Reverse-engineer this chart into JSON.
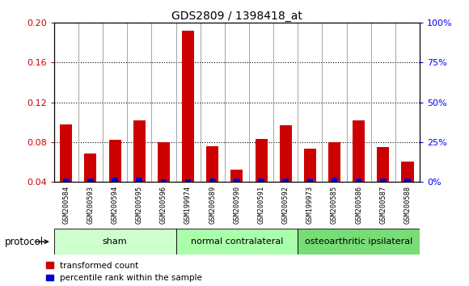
{
  "title": "GDS2809 / 1398418_at",
  "samples": [
    "GSM200584",
    "GSM200593",
    "GSM200594",
    "GSM200595",
    "GSM200596",
    "GSM199974",
    "GSM200589",
    "GSM200590",
    "GSM200591",
    "GSM200592",
    "GSM199973",
    "GSM200585",
    "GSM200586",
    "GSM200587",
    "GSM200588"
  ],
  "red_values": [
    0.098,
    0.068,
    0.082,
    0.102,
    0.08,
    0.192,
    0.076,
    0.052,
    0.083,
    0.097,
    0.073,
    0.08,
    0.102,
    0.075,
    0.06
  ],
  "blue_pct": [
    2.0,
    2.0,
    2.5,
    2.5,
    1.5,
    1.5,
    2.0,
    2.0,
    2.0,
    2.0,
    2.0,
    2.5,
    2.0,
    2.0,
    2.0
  ],
  "groups": [
    {
      "label": "sham",
      "start": 0,
      "end": 5,
      "color": "#ccffcc"
    },
    {
      "label": "normal contralateral",
      "start": 5,
      "end": 10,
      "color": "#aaffaa"
    },
    {
      "label": "osteoarthritic ipsilateral",
      "start": 10,
      "end": 15,
      "color": "#77dd77"
    }
  ],
  "protocol_label": "protocol",
  "ylim_left": [
    0.04,
    0.2
  ],
  "ylim_right": [
    0,
    100
  ],
  "yticks_left": [
    0.04,
    0.08,
    0.12,
    0.16,
    0.2
  ],
  "yticks_right": [
    0,
    25,
    50,
    75,
    100
  ],
  "red_color": "#cc0000",
  "blue_color": "#0000cc",
  "cell_bg": "#cccccc",
  "plot_bg": "#ffffff",
  "legend_red": "transformed count",
  "legend_blue": "percentile rank within the sample"
}
